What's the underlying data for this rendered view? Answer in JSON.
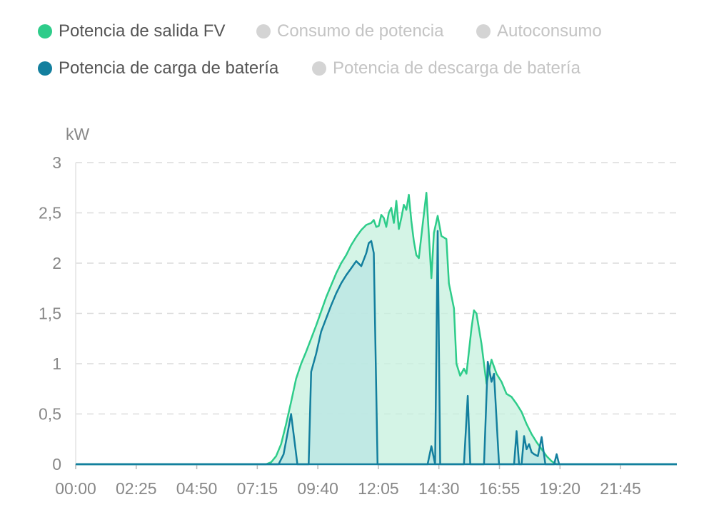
{
  "legend": {
    "items": [
      {
        "label": "Potencia de salida FV",
        "color": "#2ecc8a",
        "active": true
      },
      {
        "label": "Consumo de potencia",
        "color": "#d4d4d4",
        "active": false
      },
      {
        "label": "Autoconsumo",
        "color": "#d4d4d4",
        "active": false
      },
      {
        "label": "Potencia de carga de batería",
        "color": "#137f9e",
        "active": true
      },
      {
        "label": "Potencia de descarga de batería",
        "color": "#d4d4d4",
        "active": false
      }
    ],
    "active_text_color": "#555555",
    "inactive_text_color": "#c4c4c4"
  },
  "chart_data": {
    "type": "area",
    "ylabel": "kW",
    "ylim": [
      0,
      3
    ],
    "yticks": [
      "0",
      "0,5",
      "1",
      "1,5",
      "2",
      "2,5",
      "3"
    ],
    "xticks": [
      "00:00",
      "02:25",
      "04:50",
      "07:15",
      "09:40",
      "12:05",
      "14:30",
      "16:55",
      "19:20",
      "21:45"
    ],
    "x_unit": "hours",
    "xlim": [
      0,
      24
    ],
    "grid": "horizontal-dashed",
    "series": [
      {
        "name": "Potencia de salida FV",
        "color": "#2ecc8a",
        "fill": "#c6f0de",
        "points": [
          [
            0,
            0
          ],
          [
            7.6,
            0
          ],
          [
            7.8,
            0.02
          ],
          [
            8.0,
            0.08
          ],
          [
            8.2,
            0.2
          ],
          [
            8.4,
            0.4
          ],
          [
            8.6,
            0.62
          ],
          [
            8.8,
            0.85
          ],
          [
            9.0,
            1.0
          ],
          [
            9.2,
            1.12
          ],
          [
            9.4,
            1.25
          ],
          [
            9.6,
            1.38
          ],
          [
            9.8,
            1.52
          ],
          [
            10.0,
            1.66
          ],
          [
            10.2,
            1.78
          ],
          [
            10.4,
            1.9
          ],
          [
            10.6,
            2.0
          ],
          [
            10.8,
            2.08
          ],
          [
            11.0,
            2.18
          ],
          [
            11.2,
            2.26
          ],
          [
            11.4,
            2.33
          ],
          [
            11.6,
            2.38
          ],
          [
            11.8,
            2.4
          ],
          [
            11.9,
            2.43
          ],
          [
            12.0,
            2.36
          ],
          [
            12.1,
            2.37
          ],
          [
            12.2,
            2.48
          ],
          [
            12.3,
            2.45
          ],
          [
            12.4,
            2.36
          ],
          [
            12.5,
            2.5
          ],
          [
            12.6,
            2.55
          ],
          [
            12.7,
            2.4
          ],
          [
            12.8,
            2.62
          ],
          [
            12.9,
            2.34
          ],
          [
            13.0,
            2.45
          ],
          [
            13.1,
            2.58
          ],
          [
            13.2,
            2.53
          ],
          [
            13.3,
            2.68
          ],
          [
            13.4,
            2.42
          ],
          [
            13.5,
            2.22
          ],
          [
            13.6,
            2.08
          ],
          [
            13.7,
            2.05
          ],
          [
            13.85,
            2.38
          ],
          [
            14.0,
            2.7
          ],
          [
            14.2,
            1.85
          ],
          [
            14.3,
            2.3
          ],
          [
            14.45,
            2.47
          ],
          [
            14.6,
            2.27
          ],
          [
            14.8,
            2.24
          ],
          [
            14.9,
            1.8
          ],
          [
            15.1,
            1.55
          ],
          [
            15.2,
            1.0
          ],
          [
            15.35,
            0.88
          ],
          [
            15.5,
            0.95
          ],
          [
            15.6,
            0.9
          ],
          [
            15.8,
            1.35
          ],
          [
            15.9,
            1.53
          ],
          [
            16.0,
            1.5
          ],
          [
            16.2,
            1.2
          ],
          [
            16.4,
            0.8
          ],
          [
            16.6,
            1.04
          ],
          [
            16.8,
            0.9
          ],
          [
            17.0,
            0.82
          ],
          [
            17.2,
            0.7
          ],
          [
            17.4,
            0.67
          ],
          [
            17.6,
            0.6
          ],
          [
            17.8,
            0.52
          ],
          [
            18.0,
            0.4
          ],
          [
            18.2,
            0.3
          ],
          [
            18.4,
            0.22
          ],
          [
            18.6,
            0.15
          ],
          [
            18.8,
            0.08
          ],
          [
            19.0,
            0.03
          ],
          [
            19.2,
            0
          ],
          [
            24,
            0
          ]
        ]
      },
      {
        "name": "Potencia de carga de batería",
        "color": "#137f9e",
        "fill": "#b9e6e3",
        "points": [
          [
            0,
            0
          ],
          [
            8.1,
            0
          ],
          [
            8.3,
            0.1
          ],
          [
            8.45,
            0.3
          ],
          [
            8.6,
            0.5
          ],
          [
            8.75,
            0.2
          ],
          [
            8.85,
            0
          ],
          [
            9.3,
            0
          ],
          [
            9.4,
            0.92
          ],
          [
            9.6,
            1.1
          ],
          [
            9.8,
            1.32
          ],
          [
            10.0,
            1.45
          ],
          [
            10.2,
            1.58
          ],
          [
            10.4,
            1.7
          ],
          [
            10.6,
            1.8
          ],
          [
            10.8,
            1.88
          ],
          [
            11.0,
            1.95
          ],
          [
            11.2,
            2.02
          ],
          [
            11.4,
            1.97
          ],
          [
            11.6,
            2.1
          ],
          [
            11.7,
            2.2
          ],
          [
            11.8,
            2.22
          ],
          [
            11.9,
            2.1
          ],
          [
            12.05,
            0
          ],
          [
            14.05,
            0
          ],
          [
            14.2,
            0.18
          ],
          [
            14.35,
            0
          ],
          [
            14.45,
            2.32
          ],
          [
            14.55,
            0
          ],
          [
            15.5,
            0
          ],
          [
            15.65,
            0.68
          ],
          [
            15.75,
            0
          ],
          [
            16.3,
            0
          ],
          [
            16.45,
            1.02
          ],
          [
            16.6,
            0.82
          ],
          [
            16.7,
            0.9
          ],
          [
            16.8,
            0.45
          ],
          [
            16.9,
            0
          ],
          [
            17.5,
            0
          ],
          [
            17.6,
            0.33
          ],
          [
            17.7,
            0
          ],
          [
            17.8,
            0
          ],
          [
            17.9,
            0.28
          ],
          [
            18.0,
            0.15
          ],
          [
            18.1,
            0.2
          ],
          [
            18.2,
            0.12
          ],
          [
            18.3,
            0.1
          ],
          [
            18.45,
            0.08
          ],
          [
            18.6,
            0.27
          ],
          [
            18.75,
            0
          ],
          [
            19.1,
            0
          ],
          [
            19.2,
            0.1
          ],
          [
            19.3,
            0
          ],
          [
            24,
            0
          ]
        ]
      }
    ]
  }
}
